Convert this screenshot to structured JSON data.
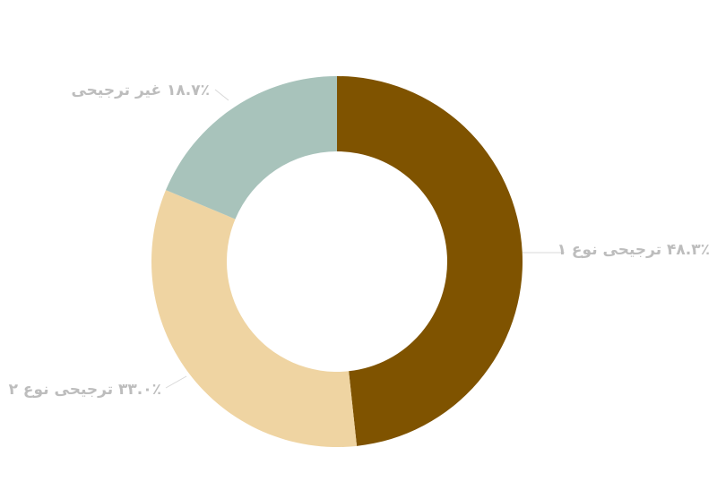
{
  "chart_data": {
    "type": "pie",
    "donut": true,
    "start": "top",
    "direction": "clockwise",
    "slices": [
      {
        "label": "۴۸.۳٪ ترجیحی نوع ۱",
        "value": 48.3,
        "color": "#7f5300"
      },
      {
        "label": "۳۳.۰٪ ترجیحی نوع ۲",
        "value": 33.0,
        "color": "#efd4a2"
      },
      {
        "label": "۱۸.۷٪ غیر ترجیحی",
        "value": 18.7,
        "color": "#a8c3bb"
      }
    ],
    "label_color": "#bdbdbd",
    "leader_line_color": "#d8d8d8"
  }
}
